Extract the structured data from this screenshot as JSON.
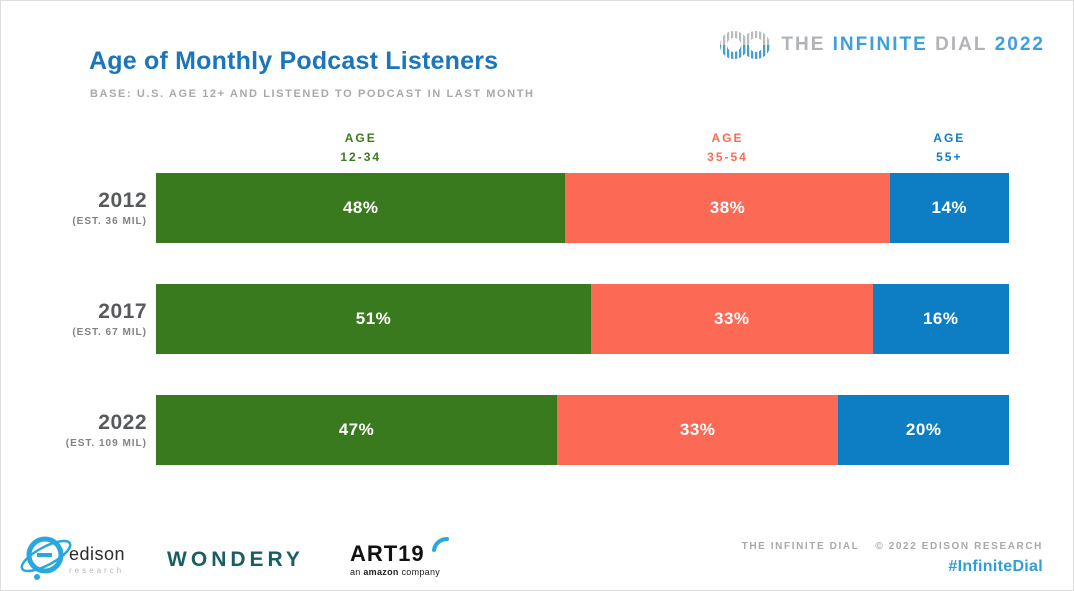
{
  "header": {
    "title": "Age of Monthly Podcast Listeners",
    "subtitle": "BASE: U.S. AGE 12+ AND LISTENED TO PODCAST IN LAST MONTH",
    "brand": {
      "the": "THE",
      "infinite": "INFINITE",
      "dial": "DIAL",
      "year": "2022"
    }
  },
  "chart_data": {
    "type": "bar",
    "stacked": true,
    "orientation": "horizontal",
    "title": "Age of Monthly Podcast Listeners",
    "base_note": "BASE: U.S. AGE 12+ AND LISTENED TO PODCAST IN LAST MONTH",
    "categories": [
      "2012",
      "2017",
      "2022"
    ],
    "category_notes": [
      "(EST. 36 MIL)",
      "(EST. 67 MIL)",
      "(EST. 109 MIL)"
    ],
    "series": [
      {
        "name": "AGE 12-34",
        "color": "#3a7a1f",
        "values": [
          48,
          51,
          47
        ]
      },
      {
        "name": "AGE 35-54",
        "color": "#fc6a55",
        "values": [
          38,
          33,
          33
        ]
      },
      {
        "name": "AGE 55+",
        "color": "#0d7ec4",
        "values": [
          14,
          16,
          20
        ]
      }
    ],
    "value_suffix": "%",
    "xlim": [
      0,
      100
    ],
    "legend_position": "top",
    "grid": false
  },
  "column_headers": [
    {
      "line1": "AGE",
      "line2": "12-34",
      "color": "#3a7a1f"
    },
    {
      "line1": "AGE",
      "line2": "35-54",
      "color": "#fc6a55"
    },
    {
      "line1": "AGE",
      "line2": "55+",
      "color": "#0d7ec4"
    }
  ],
  "footer": {
    "edison_name": "edison",
    "edison_sub": "research",
    "wondery": "WONDERY",
    "art19_name": "ART19",
    "art19_sub_pre": "an ",
    "art19_sub_brand": "amazon",
    "art19_sub_post": " company",
    "credit_left": "THE INFINITE DIAL",
    "credit_right": "© 2022 EDISON RESEARCH",
    "hashtag": "#InfiniteDial"
  },
  "colors": {
    "title_blue": "#1b75bc",
    "subtitle_gray": "#a7a9ac",
    "brand_gray": "#b1b3b6",
    "brand_blue": "#3f9fdd",
    "hashtag_blue": "#2e9ed9"
  }
}
